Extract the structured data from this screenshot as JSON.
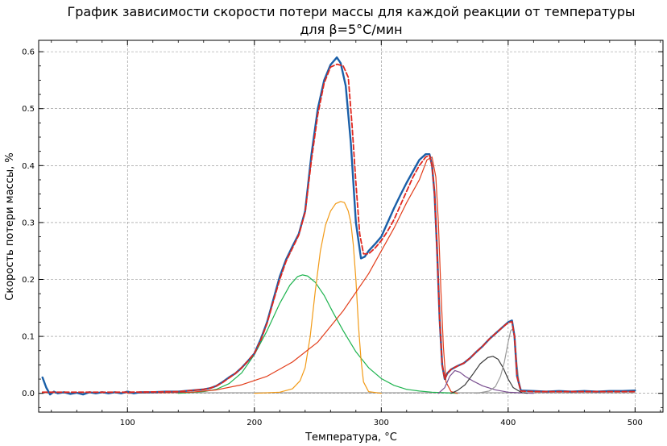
{
  "chart_data": {
    "type": "line",
    "title_line1": "График зависимости скорости потери массы для каждой реакции от температуры",
    "title_line2": "для β=5°C/мин",
    "xlabel": "Температура, °C",
    "ylabel": "Скорость потери массы, %",
    "xlim": [
      30,
      522
    ],
    "ylim": [
      -0.033,
      0.62
    ],
    "xticks": [
      100,
      200,
      300,
      400,
      500
    ],
    "yticks": [
      0.0,
      0.1,
      0.2,
      0.3,
      0.4,
      0.5,
      0.6
    ],
    "grid": true,
    "series": [
      {
        "color": "#1a5fa8",
        "width": 2.4,
        "dash": "",
        "x": [
          33,
          36,
          39,
          42,
          45,
          50,
          55,
          60,
          65,
          70,
          75,
          80,
          85,
          90,
          95,
          100,
          105,
          110,
          120,
          130,
          140,
          150,
          160,
          165,
          170,
          175,
          180,
          185,
          190,
          195,
          200,
          205,
          210,
          215,
          220,
          225,
          230,
          235,
          240,
          245,
          250,
          255,
          260,
          265,
          268,
          272,
          276,
          280,
          284,
          287,
          290,
          295,
          300,
          305,
          310,
          315,
          320,
          325,
          330,
          335,
          338,
          340,
          342,
          344,
          346,
          348,
          350,
          352,
          355,
          360,
          365,
          370,
          375,
          380,
          385,
          390,
          395,
          400,
          403,
          405,
          407,
          410,
          420,
          430,
          440,
          450,
          460,
          470,
          480,
          490,
          500
        ],
        "y": [
          0.028,
          0.01,
          -0.002,
          0.003,
          0.0,
          0.002,
          -0.001,
          0.001,
          -0.002,
          0.002,
          0.0,
          0.002,
          0.0,
          0.002,
          0.0,
          0.003,
          0.0,
          0.002,
          0.002,
          0.003,
          0.003,
          0.005,
          0.007,
          0.009,
          0.013,
          0.02,
          0.028,
          0.035,
          0.045,
          0.057,
          0.07,
          0.095,
          0.125,
          0.165,
          0.205,
          0.235,
          0.258,
          0.28,
          0.32,
          0.42,
          0.5,
          0.55,
          0.577,
          0.59,
          0.58,
          0.54,
          0.44,
          0.3,
          0.237,
          0.24,
          0.25,
          0.262,
          0.275,
          0.3,
          0.325,
          0.348,
          0.37,
          0.39,
          0.41,
          0.42,
          0.42,
          0.4,
          0.35,
          0.25,
          0.13,
          0.05,
          0.025,
          0.035,
          0.042,
          0.048,
          0.053,
          0.062,
          0.073,
          0.083,
          0.095,
          0.105,
          0.115,
          0.125,
          0.128,
          0.1,
          0.03,
          0.005,
          0.004,
          0.003,
          0.004,
          0.003,
          0.004,
          0.003,
          0.004,
          0.004,
          0.005
        ]
      },
      {
        "color": "#e0271e",
        "width": 1.8,
        "dash": "6,3",
        "x": [
          33,
          60,
          100,
          140,
          150,
          160,
          165,
          170,
          175,
          180,
          185,
          190,
          195,
          200,
          205,
          210,
          215,
          220,
          225,
          230,
          235,
          240,
          245,
          250,
          255,
          260,
          265,
          270,
          274,
          277,
          280,
          283,
          286,
          290,
          295,
          300,
          305,
          310,
          315,
          320,
          325,
          330,
          335,
          338,
          340,
          342,
          344,
          346,
          348,
          350,
          352,
          355,
          360,
          365,
          370,
          375,
          380,
          385,
          390,
          395,
          400,
          403,
          405,
          407,
          410,
          420,
          450,
          500
        ],
        "y": [
          0.002,
          0.002,
          0.002,
          0.003,
          0.005,
          0.007,
          0.009,
          0.013,
          0.019,
          0.027,
          0.035,
          0.045,
          0.057,
          0.07,
          0.093,
          0.123,
          0.162,
          0.2,
          0.232,
          0.255,
          0.278,
          0.318,
          0.41,
          0.49,
          0.545,
          0.573,
          0.578,
          0.575,
          0.555,
          0.47,
          0.37,
          0.28,
          0.245,
          0.245,
          0.255,
          0.268,
          0.285,
          0.305,
          0.33,
          0.355,
          0.38,
          0.4,
          0.415,
          0.418,
          0.4,
          0.35,
          0.25,
          0.13,
          0.05,
          0.025,
          0.035,
          0.042,
          0.048,
          0.053,
          0.062,
          0.073,
          0.083,
          0.095,
          0.105,
          0.115,
          0.124,
          0.126,
          0.1,
          0.03,
          0.004,
          0.003,
          0.003,
          0.003
        ]
      },
      {
        "color": "#1db34e",
        "width": 1.2,
        "dash": "",
        "x": [
          140,
          160,
          170,
          180,
          190,
          200,
          210,
          220,
          228,
          234,
          238,
          242,
          248,
          255,
          262,
          270,
          280,
          290,
          300,
          310,
          320,
          330,
          340,
          350,
          360
        ],
        "y": [
          0.0,
          0.003,
          0.007,
          0.017,
          0.036,
          0.068,
          0.11,
          0.158,
          0.19,
          0.205,
          0.208,
          0.206,
          0.195,
          0.172,
          0.142,
          0.11,
          0.073,
          0.045,
          0.026,
          0.014,
          0.007,
          0.004,
          0.002,
          0.001,
          0.0
        ]
      },
      {
        "color": "#f29a16",
        "width": 1.2,
        "dash": "",
        "x": [
          200,
          220,
          230,
          236,
          240,
          244,
          248,
          252,
          256,
          260,
          264,
          268,
          271,
          274,
          276,
          278,
          280,
          282,
          284,
          286,
          290,
          300
        ],
        "y": [
          0.0,
          0.002,
          0.008,
          0.022,
          0.045,
          0.1,
          0.18,
          0.25,
          0.295,
          0.32,
          0.333,
          0.337,
          0.335,
          0.32,
          0.3,
          0.26,
          0.2,
          0.12,
          0.06,
          0.02,
          0.003,
          0.0
        ]
      },
      {
        "color": "#e23d1a",
        "width": 1.2,
        "dash": "",
        "x": [
          100,
          150,
          170,
          190,
          210,
          230,
          250,
          270,
          290,
          300,
          310,
          320,
          330,
          336,
          340,
          343,
          345,
          347,
          349,
          351,
          355,
          360
        ],
        "y": [
          0.0,
          0.002,
          0.006,
          0.015,
          0.03,
          0.055,
          0.09,
          0.145,
          0.21,
          0.25,
          0.29,
          0.335,
          0.375,
          0.41,
          0.415,
          0.38,
          0.3,
          0.18,
          0.08,
          0.02,
          0.003,
          0.0
        ]
      },
      {
        "color": "#7a4f90",
        "width": 1.2,
        "dash": "",
        "x": [
          345,
          350,
          354,
          358,
          362,
          366,
          372,
          380,
          390,
          400,
          408,
          420
        ],
        "y": [
          0.0,
          0.01,
          0.03,
          0.04,
          0.037,
          0.03,
          0.022,
          0.013,
          0.006,
          0.002,
          0.001,
          0.0
        ]
      },
      {
        "color": "#3c3c3c",
        "width": 1.2,
        "dash": "",
        "x": [
          355,
          360,
          366,
          372,
          378,
          384,
          388,
          392,
          396,
          400,
          404,
          410,
          415
        ],
        "y": [
          0.0,
          0.005,
          0.015,
          0.033,
          0.052,
          0.063,
          0.065,
          0.06,
          0.045,
          0.025,
          0.01,
          0.002,
          0.0
        ]
      },
      {
        "color": "#9a9a9a",
        "width": 1.2,
        "dash": "",
        "x": [
          375,
          385,
          390,
          394,
          397,
          400,
          402,
          403.5,
          405,
          407,
          409,
          412
        ],
        "y": [
          0.0,
          0.004,
          0.012,
          0.03,
          0.055,
          0.09,
          0.11,
          0.113,
          0.1,
          0.05,
          0.01,
          0.0
        ]
      },
      {
        "color": "#a0a0a0",
        "width": 1.2,
        "dash": "",
        "x": [
          33,
          500
        ],
        "y": [
          0.001,
          0.001
        ]
      }
    ]
  }
}
